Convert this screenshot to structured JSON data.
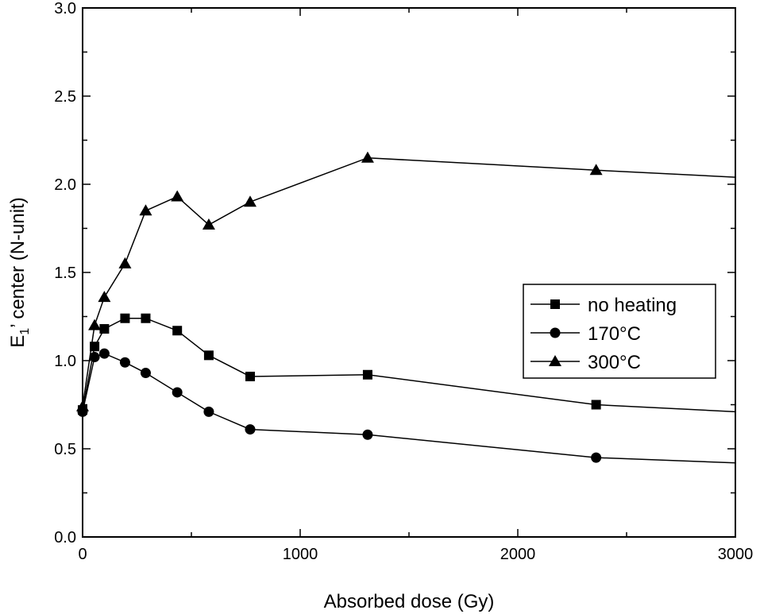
{
  "chart_data": {
    "type": "line",
    "xlabel": "Absorbed dose (Gy)",
    "ylabel_main": "E",
    "ylabel_sub": "1",
    "ylabel_rest": "’ center (N-unit)",
    "xlim": [
      0,
      3000
    ],
    "ylim": [
      0.0,
      3.0
    ],
    "xticks": [
      0,
      1000,
      2000,
      3000
    ],
    "xtick_labels": [
      "0",
      "1000",
      "2000",
      "3000"
    ],
    "yticks": [
      0.0,
      0.5,
      1.0,
      1.5,
      2.0,
      2.5,
      3.0
    ],
    "ytick_labels": [
      "0.0",
      "0.5",
      "1.0",
      "1.5",
      "2.0",
      "2.5",
      "3.0"
    ],
    "grid": false,
    "legend_position": "center-right",
    "series": [
      {
        "name": "no heating",
        "marker": "square",
        "x": [
          0,
          55,
          100,
          195,
          290,
          435,
          580,
          770,
          1310,
          2360,
          3000
        ],
        "y": [
          0.72,
          1.08,
          1.18,
          1.24,
          1.24,
          1.17,
          1.03,
          0.91,
          0.92,
          0.75,
          0.71
        ],
        "marker_mask": [
          true,
          true,
          true,
          true,
          true,
          true,
          true,
          true,
          true,
          true,
          false
        ]
      },
      {
        "name": "170°C",
        "marker": "circle",
        "x": [
          0,
          55,
          100,
          195,
          290,
          435,
          580,
          770,
          1310,
          2360,
          3000
        ],
        "y": [
          0.71,
          1.02,
          1.04,
          0.99,
          0.93,
          0.82,
          0.71,
          0.61,
          0.58,
          0.45,
          0.42
        ],
        "marker_mask": [
          true,
          true,
          true,
          true,
          true,
          true,
          true,
          true,
          true,
          true,
          false
        ]
      },
      {
        "name": "300°C",
        "marker": "triangle",
        "x": [
          0,
          55,
          100,
          195,
          290,
          435,
          580,
          770,
          1310,
          2360,
          3000
        ],
        "y": [
          0.74,
          1.2,
          1.36,
          1.55,
          1.85,
          1.93,
          1.77,
          1.9,
          2.15,
          2.08,
          2.04
        ],
        "marker_mask": [
          true,
          true,
          true,
          true,
          true,
          true,
          true,
          true,
          true,
          true,
          false
        ]
      }
    ]
  }
}
